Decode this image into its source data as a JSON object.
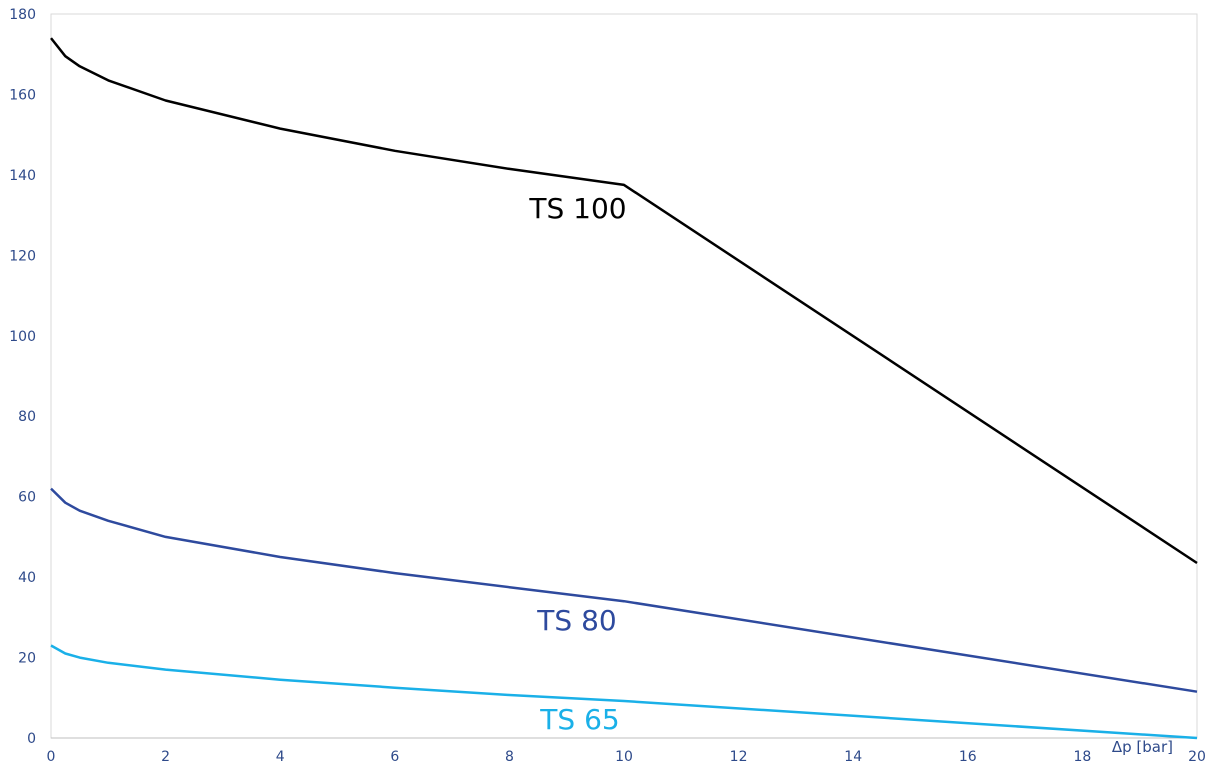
{
  "chart_data": {
    "type": "line",
    "title": "",
    "xlabel": "Δp [bar]",
    "ylabel": "",
    "xlim": [
      0,
      20
    ],
    "ylim": [
      0,
      180
    ],
    "x_ticks": [
      "0",
      "2",
      "4",
      "6",
      "8",
      "10",
      "12",
      "14",
      "16",
      "18",
      "20"
    ],
    "y_ticks": [
      "0",
      "20",
      "40",
      "60",
      "80",
      "100",
      "120",
      "140",
      "160",
      "180"
    ],
    "grid": false,
    "series": [
      {
        "name": "TS 100",
        "color": "#000000",
        "x": [
          0,
          0.25,
          0.5,
          1,
          2,
          4,
          6,
          8,
          10,
          20
        ],
        "y": [
          174,
          169.5,
          167,
          163.5,
          158.5,
          151.5,
          146,
          141.5,
          137.5,
          43.5
        ]
      },
      {
        "name": "TS 80",
        "color": "#2e4a9e",
        "x": [
          0,
          0.25,
          0.5,
          1,
          2,
          4,
          6,
          8,
          10,
          20
        ],
        "y": [
          62,
          58.5,
          56.5,
          54,
          50,
          45,
          41,
          37.5,
          34,
          11.5
        ]
      },
      {
        "name": "TS 65",
        "color": "#1ab0e8",
        "x": [
          0,
          0.25,
          0.5,
          1,
          2,
          4,
          6,
          8,
          10,
          20
        ],
        "y": [
          23,
          21,
          20,
          18.7,
          17,
          14.5,
          12.5,
          10.7,
          9.2,
          0
        ]
      }
    ]
  }
}
